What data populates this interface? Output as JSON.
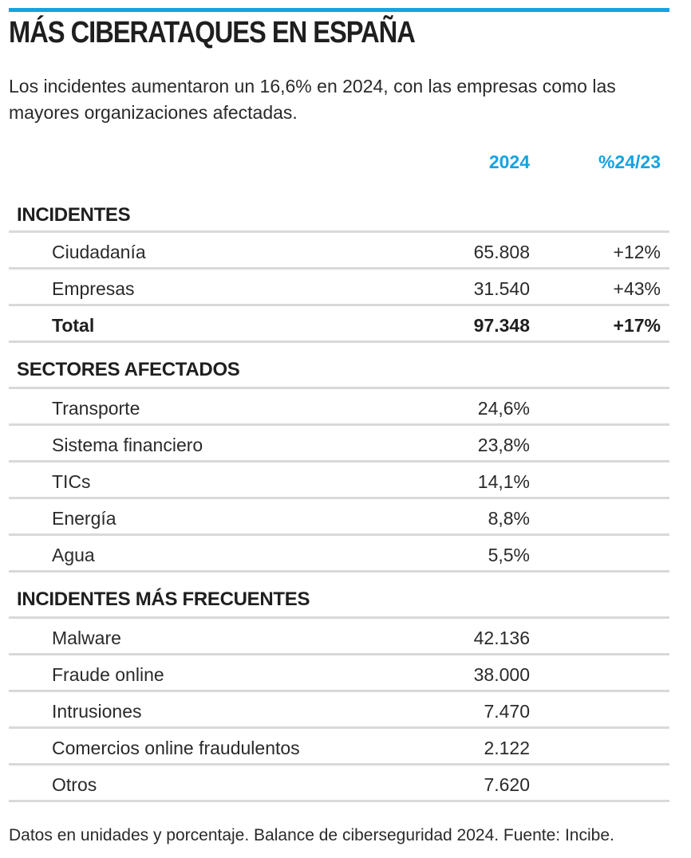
{
  "accent_color": "#15a3e0",
  "title": "MÁS CIBERATAQUES EN ESPAÑA",
  "subtitle": "Los incidentes aumentaron un 16,6% en 2024, con las empresas como las mayores organizaciones afectadas.",
  "footer": "Datos en unidades y porcentaje. Balance de ciberseguridad 2024. Fuente: Incibe.",
  "chart_data": {
    "type": "table",
    "title": "MÁS CIBERATAQUES EN ESPAÑA",
    "columns": [
      "2024",
      "%24/23"
    ],
    "sections": [
      {
        "heading": "INCIDENTES",
        "rows": [
          {
            "label": "Ciudadanía",
            "value": "65.808",
            "change": "+12%"
          },
          {
            "label": "Empresas",
            "value": "31.540",
            "change": "+43%"
          },
          {
            "label": "Total",
            "value": "97.348",
            "change": "+17%",
            "total": true
          }
        ]
      },
      {
        "heading": "SECTORES AFECTADOS",
        "rows": [
          {
            "label": "Transporte",
            "value": "24,6%",
            "change": ""
          },
          {
            "label": "Sistema financiero",
            "value": "23,8%",
            "change": ""
          },
          {
            "label": "TICs",
            "value": "14,1%",
            "change": ""
          },
          {
            "label": "Energía",
            "value": "8,8%",
            "change": ""
          },
          {
            "label": "Agua",
            "value": "5,5%",
            "change": ""
          }
        ]
      },
      {
        "heading": "INCIDENTES MÁS FRECUENTES",
        "rows": [
          {
            "label": "Malware",
            "value": "42.136",
            "change": ""
          },
          {
            "label": "Fraude online",
            "value": "38.000",
            "change": ""
          },
          {
            "label": "Intrusiones",
            "value": "7.470",
            "change": ""
          },
          {
            "label": "Comercios online fraudulentos",
            "value": "2.122",
            "change": ""
          },
          {
            "label": "Otros",
            "value": "7.620",
            "change": ""
          }
        ]
      }
    ]
  }
}
